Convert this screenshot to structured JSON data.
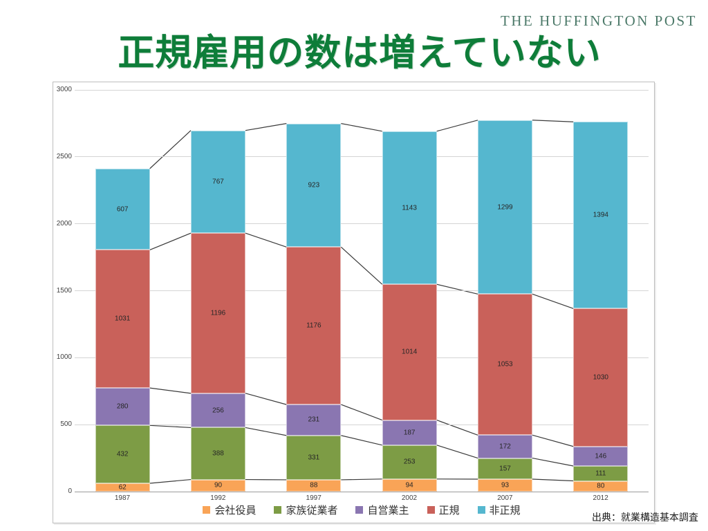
{
  "page": {
    "logo": "THE HUFFINGTON POST",
    "title": "正規雇用の数は増えていない",
    "source": "出典：就業構造基本調査"
  },
  "colors": {
    "title_green": "#0e7d39",
    "logo_green": "#4d7a6a",
    "gridline": "#d4d4d4",
    "axis_line": "#9b9b9b",
    "connector_line": "#3a3a3a",
    "frame_border": "#bdbdbd"
  },
  "chart_data": {
    "type": "bar",
    "subtype": "stacked-column-with-series-lines",
    "title": "",
    "xlabel": "",
    "ylabel": "",
    "categories": [
      "1987",
      "1992",
      "1997",
      "2002",
      "2007",
      "2012"
    ],
    "series": [
      {
        "name": "会社役員",
        "color": "#F9A457",
        "values": [
          62,
          90,
          88,
          94,
          93,
          80
        ]
      },
      {
        "name": "家族従業者",
        "color": "#7D9C45",
        "values": [
          432,
          388,
          331,
          253,
          157,
          111
        ]
      },
      {
        "name": "自営業主",
        "color": "#8A76B1",
        "values": [
          280,
          256,
          231,
          187,
          172,
          146
        ]
      },
      {
        "name": "正規",
        "color": "#C9615A",
        "values": [
          1031,
          1196,
          1176,
          1014,
          1053,
          1030
        ]
      },
      {
        "name": "非正規",
        "color": "#55B7CF",
        "values": [
          607,
          767,
          923,
          1143,
          1299,
          1394
        ]
      }
    ],
    "ylim": [
      0,
      3000
    ],
    "yticks": [
      0,
      500,
      1000,
      1500,
      2000,
      2500,
      3000
    ],
    "grid": true,
    "legend_position": "bottom",
    "value_labels": "inside-center",
    "series_lines": true
  }
}
